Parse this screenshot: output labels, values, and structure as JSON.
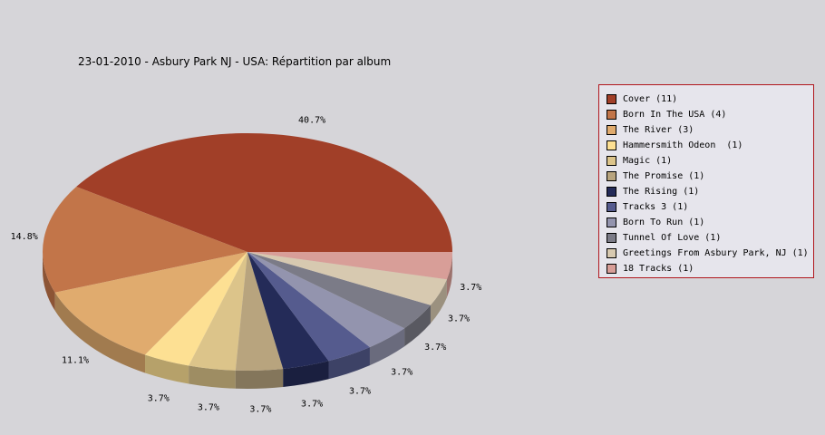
{
  "chart_data": {
    "type": "pie",
    "title": "23-01-2010 - Asbury Park NJ - USA:  Répartition par album",
    "legend_position": "right",
    "three_d": true,
    "slices": [
      {
        "label": "Cover",
        "count": 11,
        "legend": "Cover (11)",
        "percent": 40.7,
        "percent_label": "40.7%",
        "color": "#a13f28"
      },
      {
        "label": "Born In The USA",
        "count": 4,
        "legend": "Born In The USA (4)",
        "percent": 14.8,
        "percent_label": "14.8%",
        "color": "#c27549"
      },
      {
        "label": "The River",
        "count": 3,
        "legend": "The River (3)",
        "percent": 11.1,
        "percent_label": "11.1%",
        "color": "#e0ab6e"
      },
      {
        "label": "Hammersmith Odeon",
        "count": 1,
        "legend": "Hammersmith Odeon  (1)",
        "percent": 3.7,
        "percent_label": "3.7%",
        "color": "#fde093"
      },
      {
        "label": "Magic",
        "count": 1,
        "legend": "Magic (1)",
        "percent": 3.7,
        "percent_label": "3.7%",
        "color": "#dcc48a"
      },
      {
        "label": "The Promise",
        "count": 1,
        "legend": "The Promise (1)",
        "percent": 3.7,
        "percent_label": "3.7%",
        "color": "#b8a47e"
      },
      {
        "label": "The Rising",
        "count": 1,
        "legend": "The Rising (1)",
        "percent": 3.7,
        "percent_label": "3.7%",
        "color": "#242b58"
      },
      {
        "label": "Tracks 3",
        "count": 1,
        "legend": "Tracks 3 (1)",
        "percent": 3.7,
        "percent_label": "3.7%",
        "color": "#555b8e"
      },
      {
        "label": "Born To Run",
        "count": 1,
        "legend": "Born To Run (1)",
        "percent": 3.7,
        "percent_label": "3.7%",
        "color": "#9394ae"
      },
      {
        "label": "Tunnel Of Love",
        "count": 1,
        "legend": "Tunnel Of Love (1)",
        "percent": 3.7,
        "percent_label": "3.7%",
        "color": "#7b7b87"
      },
      {
        "label": "Greetings From Asbury Park, NJ",
        "count": 1,
        "legend": "Greetings From Asbury Park, NJ (1)",
        "percent": 3.7,
        "percent_label": "3.7%",
        "color": "#d7c9b0"
      },
      {
        "label": "18 Tracks",
        "count": 1,
        "legend": "18 Tracks (1)",
        "percent": 3.7,
        "percent_label": "3.7%",
        "color": "#d89e98"
      }
    ]
  }
}
